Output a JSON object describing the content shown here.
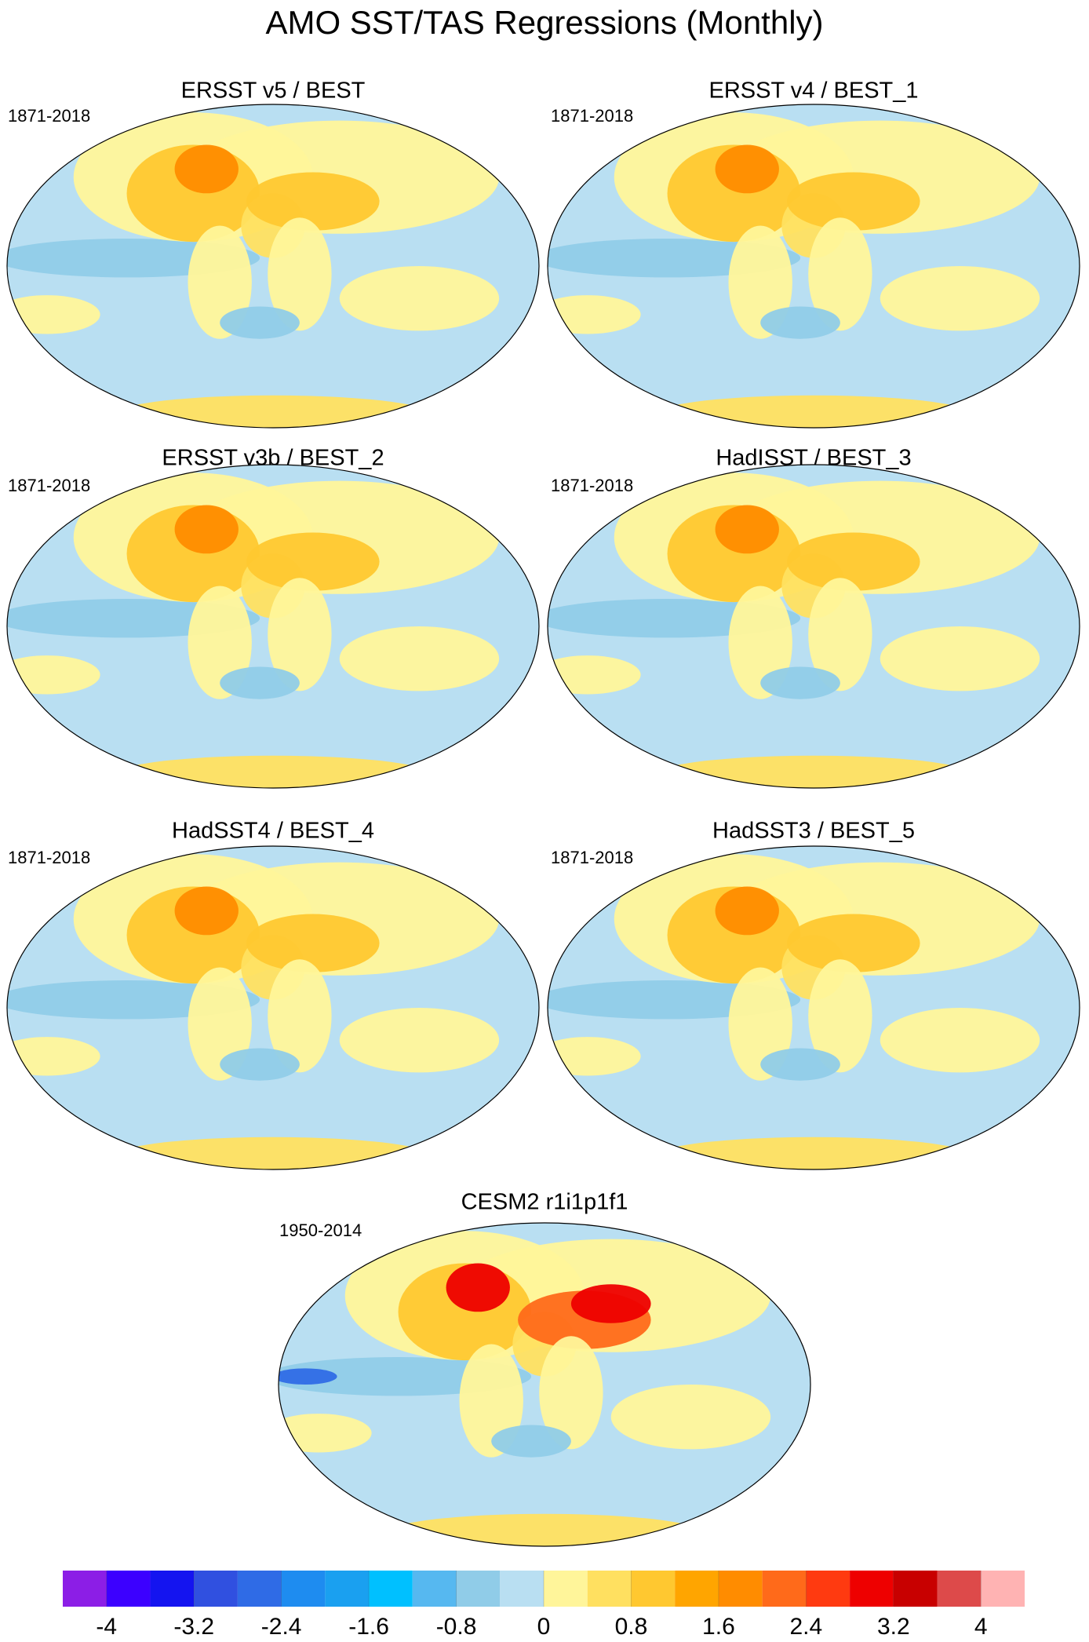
{
  "title": "AMO SST/TAS Regressions (Monthly)",
  "panels": [
    {
      "title": "ERSST v5 / BEST",
      "period": "1871-2018"
    },
    {
      "title": "ERSST v4 / BEST_1",
      "period": "1871-2018"
    },
    {
      "title": "ERSST v3b / BEST_2",
      "period": "1871-2018"
    },
    {
      "title": "HadISST / BEST_3",
      "period": "1871-2018"
    },
    {
      "title": "HadSST4 / BEST_4",
      "period": "1871-2018"
    },
    {
      "title": "HadSST3 / BEST_5",
      "period": "1871-2018"
    },
    {
      "title": "CESM2 r1i1p1f1",
      "period": "1950-2014"
    }
  ],
  "colorbar": {
    "ticks": [
      -4,
      -3.2,
      -2.4,
      -1.6,
      -0.8,
      0,
      0.8,
      1.6,
      2.4,
      3.2,
      4
    ],
    "colors": [
      "#8c1ee6",
      "#3c00ff",
      "#1414f0",
      "#3050e0",
      "#2f6be6",
      "#1e8cf0",
      "#1aa0f0",
      "#00c0ff",
      "#56b8f0",
      "#90cce8",
      "#b9dff2",
      "#fff59a",
      "#ffe060",
      "#ffc830",
      "#ffa500",
      "#ff8c00",
      "#ff6a1a",
      "#ff3a10",
      "#ee0000",
      "#c80000",
      "#dd4a4a",
      "#ffb3b3"
    ]
  }
}
